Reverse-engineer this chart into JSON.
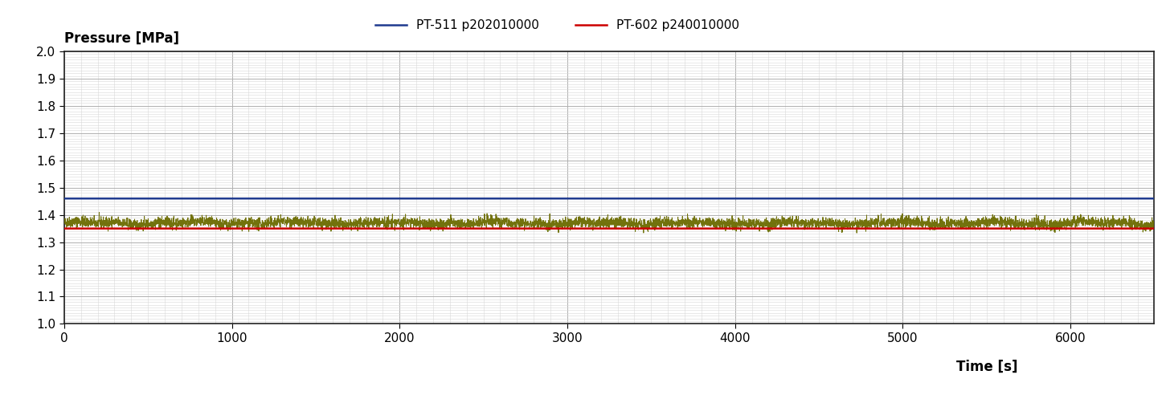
{
  "ylabel": "Pressure [MPa]",
  "xlabel": "Time [s]",
  "ylim": [
    1.0,
    2.0
  ],
  "xlim": [
    0,
    6500
  ],
  "yticks": [
    1.0,
    1.1,
    1.2,
    1.3,
    1.4,
    1.5,
    1.6,
    1.7,
    1.8,
    1.9,
    2.0
  ],
  "xticks": [
    0,
    1000,
    2000,
    3000,
    4000,
    5000,
    6000
  ],
  "line_blue_label": "PT-511 p202010000",
  "line_red_label": "PT-602 p240010000",
  "line_blue_color": "#1f3a8f",
  "line_red_color": "#cc0000",
  "line_blue_value": 1.46,
  "line_red_value": 1.35,
  "exp_inlet_value": 1.37,
  "exp_inlet_noise": 0.01,
  "exp_inlet_color": "#6b6b00",
  "t_start": 0,
  "t_end": 6500,
  "n_points": 6500,
  "background_color": "#ffffff",
  "grid_major_color": "#b0b0b0",
  "grid_minor_color": "#d8d8d8",
  "tick_fontsize": 11,
  "label_fontsize": 12,
  "legend_fontsize": 11
}
